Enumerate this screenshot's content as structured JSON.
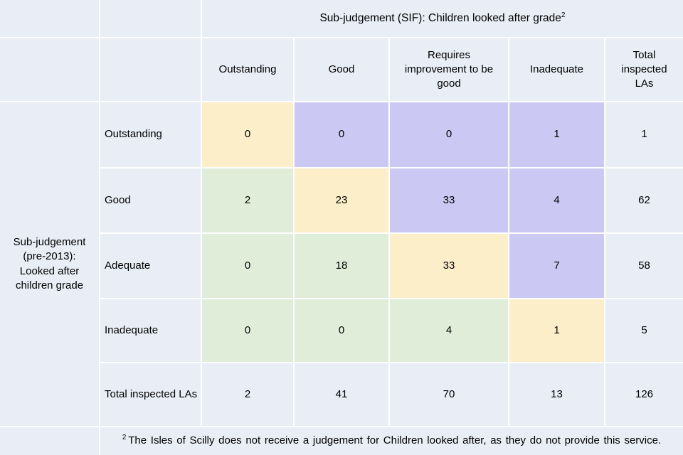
{
  "table": {
    "top_header": "Sub-judgement (SIF): Children looked after grade",
    "top_header_sup": "2",
    "column_headers": [
      "Outstanding",
      "Good",
      "Requires improvement to be good",
      "Inadequate",
      "Total inspected LAs"
    ],
    "row_group_label": "Sub-judgement (pre-2013): Looked after children grade",
    "rows": [
      {
        "label": "Outstanding",
        "values": [
          "0",
          "0",
          "0",
          "1",
          "1"
        ],
        "cell_colors": [
          "diagonal-match",
          "above-diagonal",
          "above-diagonal",
          "above-diagonal",
          "total"
        ]
      },
      {
        "label": "Good",
        "values": [
          "2",
          "23",
          "33",
          "4",
          "62"
        ],
        "cell_colors": [
          "below-diagonal",
          "diagonal-match",
          "above-diagonal",
          "above-diagonal",
          "total"
        ]
      },
      {
        "label": "Adequate",
        "values": [
          "0",
          "18",
          "33",
          "7",
          "58"
        ],
        "cell_colors": [
          "below-diagonal",
          "below-diagonal",
          "diagonal-match",
          "above-diagonal",
          "total"
        ]
      },
      {
        "label": "Inadequate",
        "values": [
          "0",
          "0",
          "4",
          "1",
          "5"
        ],
        "cell_colors": [
          "below-diagonal",
          "below-diagonal",
          "below-diagonal",
          "diagonal-match",
          "total"
        ]
      },
      {
        "label": "Total inspected LAs",
        "values": [
          "2",
          "41",
          "70",
          "13",
          "126"
        ],
        "cell_colors": [
          "total",
          "total",
          "total",
          "total",
          "total"
        ]
      }
    ],
    "footnote_sup": "2",
    "footnote": "The Isles of Scilly does not receive a judgement for Children looked after, as they do not provide this service."
  },
  "colors": {
    "background": "#E9EDF6",
    "match_yellow": "#FCEEC9",
    "above_purple": "#CBC9F4",
    "below_green": "#E0EDD9",
    "grid_line": "#FFFFFF",
    "text": "#000000"
  },
  "chart_data": {
    "type": "heatmap",
    "title": "Sub-judgement (SIF): Children looked after grade",
    "xlabel": "Sub-judgement (SIF): Children looked after grade",
    "ylabel": "Sub-judgement (pre-2013): Looked after children grade",
    "columns": [
      "Outstanding",
      "Good",
      "Requires improvement to be good",
      "Inadequate",
      "Total inspected LAs"
    ],
    "rows": [
      "Outstanding",
      "Good",
      "Adequate",
      "Inadequate",
      "Total inspected LAs"
    ],
    "values": [
      [
        0,
        0,
        0,
        1,
        1
      ],
      [
        2,
        23,
        33,
        4,
        62
      ],
      [
        0,
        18,
        33,
        7,
        58
      ],
      [
        0,
        0,
        4,
        1,
        5
      ],
      [
        2,
        41,
        70,
        13,
        126
      ]
    ],
    "color_legend": {
      "diagonal-match": "#FCEEC9",
      "above-diagonal": "#CBC9F4",
      "below-diagonal": "#E0EDD9",
      "total": "#E9EDF6"
    },
    "footnote": "2 The Isles of Scilly does not receive a judgement for Children looked after, as they do not provide this service."
  }
}
